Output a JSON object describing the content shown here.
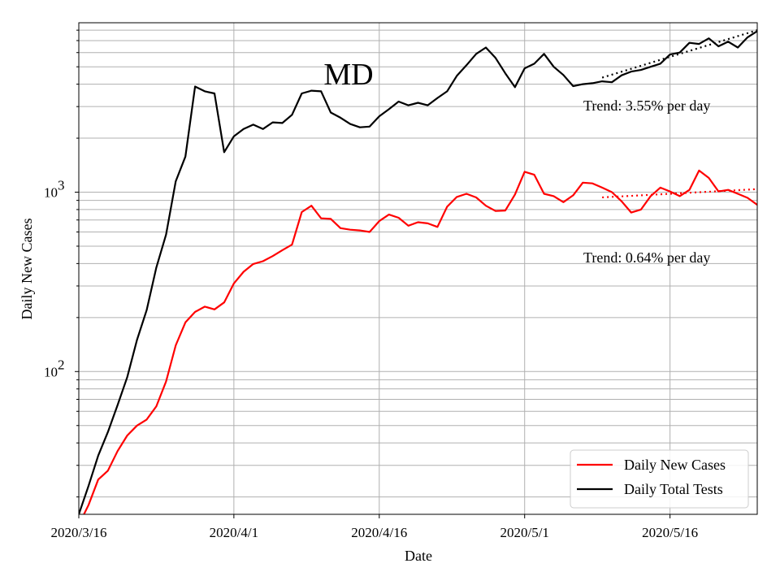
{
  "chart_data": {
    "type": "line",
    "title": "MD",
    "xlabel": "Date",
    "ylabel": "Daily New Cases",
    "yscale": "log",
    "ylim": [
      16,
      8800
    ],
    "xlim": [
      "2020/3/16",
      "2020/5/25"
    ],
    "x_ticks": [
      "2020/3/16",
      "2020/4/1",
      "2020/4/16",
      "2020/5/1",
      "2020/5/16"
    ],
    "y_ticks": [
      {
        "value": 100,
        "base": "10",
        "exp": "2"
      },
      {
        "value": 1000,
        "base": "10",
        "exp": "3"
      }
    ],
    "grid": true,
    "legend_position": "lower-right",
    "series": [
      {
        "name": "Daily New Cases",
        "color": "#ff0000",
        "dates": [
          "2020/3/16",
          "2020/3/17",
          "2020/3/18",
          "2020/3/19",
          "2020/3/20",
          "2020/3/21",
          "2020/3/22",
          "2020/3/23",
          "2020/3/24",
          "2020/3/25",
          "2020/3/26",
          "2020/3/27",
          "2020/3/28",
          "2020/3/29",
          "2020/3/30",
          "2020/3/31",
          "2020/4/1",
          "2020/4/2",
          "2020/4/3",
          "2020/4/4",
          "2020/4/5",
          "2020/4/6",
          "2020/4/7",
          "2020/4/8",
          "2020/4/9",
          "2020/4/10",
          "2020/4/11",
          "2020/4/12",
          "2020/4/13",
          "2020/4/14",
          "2020/4/15",
          "2020/4/16",
          "2020/4/17",
          "2020/4/18",
          "2020/4/19",
          "2020/4/20",
          "2020/4/21",
          "2020/4/22",
          "2020/4/23",
          "2020/4/24",
          "2020/4/25",
          "2020/4/26",
          "2020/4/27",
          "2020/4/28",
          "2020/4/29",
          "2020/4/30",
          "2020/5/1",
          "2020/5/2",
          "2020/5/3",
          "2020/5/4",
          "2020/5/5",
          "2020/5/6",
          "2020/5/7",
          "2020/5/8",
          "2020/5/9",
          "2020/5/10",
          "2020/5/11",
          "2020/5/12",
          "2020/5/13",
          "2020/5/14",
          "2020/5/15",
          "2020/5/16",
          "2020/5/17",
          "2020/5/18",
          "2020/5/19",
          "2020/5/20",
          "2020/5/21",
          "2020/5/22",
          "2020/5/23",
          "2020/5/24",
          "2020/5/25"
        ],
        "values": [
          14,
          18,
          25,
          28,
          36,
          44,
          50,
          54,
          64,
          88,
          140,
          188,
          215,
          230,
          222,
          243,
          310,
          360,
          398,
          412,
          440,
          475,
          510,
          775,
          840,
          715,
          710,
          630,
          618,
          612,
          600,
          690,
          750,
          720,
          650,
          680,
          670,
          640,
          830,
          940,
          980,
          935,
          840,
          785,
          790,
          970,
          1300,
          1250,
          980,
          950,
          880,
          960,
          1130,
          1120,
          1060,
          1000,
          890,
          770,
          800,
          950,
          1060,
          1010,
          950,
          1030,
          1320,
          1200,
          1010,
          1030,
          980,
          930,
          850
        ]
      },
      {
        "name": "Daily Total Tests",
        "color": "#000000",
        "dates": [
          "2020/3/16",
          "2020/3/17",
          "2020/3/18",
          "2020/3/19",
          "2020/3/20",
          "2020/3/21",
          "2020/3/22",
          "2020/3/23",
          "2020/3/24",
          "2020/3/25",
          "2020/3/26",
          "2020/3/27",
          "2020/3/28",
          "2020/3/29",
          "2020/3/30",
          "2020/3/31",
          "2020/4/1",
          "2020/4/2",
          "2020/4/3",
          "2020/4/4",
          "2020/4/5",
          "2020/4/6",
          "2020/4/7",
          "2020/4/8",
          "2020/4/9",
          "2020/4/10",
          "2020/4/11",
          "2020/4/12",
          "2020/4/13",
          "2020/4/14",
          "2020/4/15",
          "2020/4/16",
          "2020/4/17",
          "2020/4/18",
          "2020/4/19",
          "2020/4/20",
          "2020/4/21",
          "2020/4/22",
          "2020/4/23",
          "2020/4/24",
          "2020/4/25",
          "2020/4/26",
          "2020/4/27",
          "2020/4/28",
          "2020/4/29",
          "2020/4/30",
          "2020/5/1",
          "2020/5/2",
          "2020/5/3",
          "2020/5/4",
          "2020/5/5",
          "2020/5/6",
          "2020/5/7",
          "2020/5/8",
          "2020/5/9",
          "2020/5/10",
          "2020/5/11",
          "2020/5/12",
          "2020/5/13",
          "2020/5/14",
          "2020/5/15",
          "2020/5/16",
          "2020/5/17",
          "2020/5/18",
          "2020/5/19",
          "2020/5/20",
          "2020/5/21",
          "2020/5/22",
          "2020/5/23",
          "2020/5/24",
          "2020/5/25"
        ],
        "values": [
          16,
          23,
          34,
          46,
          65,
          93,
          150,
          220,
          380,
          580,
          1150,
          1580,
          3880,
          3650,
          3550,
          1670,
          2050,
          2250,
          2380,
          2250,
          2450,
          2430,
          2700,
          3550,
          3680,
          3650,
          2780,
          2600,
          2400,
          2300,
          2320,
          2650,
          2900,
          3200,
          3050,
          3150,
          3050,
          3350,
          3650,
          4450,
          5100,
          5900,
          6400,
          5600,
          4600,
          3850,
          4900,
          5200,
          5900,
          5000,
          4500,
          3900,
          4000,
          4050,
          4150,
          4100,
          4480,
          4700,
          4800,
          5000,
          5200,
          5850,
          6000,
          6800,
          6700,
          7200,
          6500,
          6900,
          6400,
          7300,
          7900
        ]
      }
    ],
    "trends": [
      {
        "name": "Daily New Cases trend",
        "color": "#ff0000",
        "start": "2020/5/9",
        "end": "2020/5/25",
        "start_value": 935,
        "end_value": 1040,
        "label": "Trend: 0.64% per day"
      },
      {
        "name": "Daily Total Tests trend",
        "color": "#000000",
        "start": "2020/5/9",
        "end": "2020/5/25",
        "start_value": 4350,
        "end_value": 8000,
        "label": "Trend: 3.55% per day"
      }
    ]
  }
}
